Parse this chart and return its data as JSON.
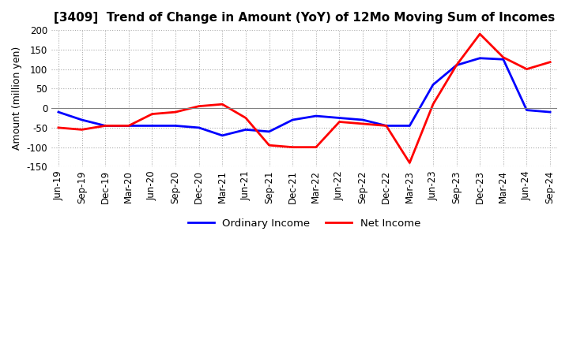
{
  "title": "[3409]  Trend of Change in Amount (YoY) of 12Mo Moving Sum of Incomes",
  "ylabel": "Amount (million yen)",
  "ylim": [
    -150,
    200
  ],
  "yticks": [
    -150,
    -100,
    -50,
    0,
    50,
    100,
    150,
    200
  ],
  "legend_labels": [
    "Ordinary Income",
    "Net Income"
  ],
  "line_colors": [
    "blue",
    "red"
  ],
  "dates": [
    "Jun-19",
    "Sep-19",
    "Dec-19",
    "Mar-20",
    "Jun-20",
    "Sep-20",
    "Dec-20",
    "Mar-21",
    "Jun-21",
    "Sep-21",
    "Dec-21",
    "Mar-22",
    "Jun-22",
    "Sep-22",
    "Dec-22",
    "Mar-23",
    "Jun-23",
    "Sep-23",
    "Dec-23",
    "Mar-24",
    "Jun-24",
    "Sep-24"
  ],
  "ordinary_income": [
    -10,
    -30,
    -45,
    -45,
    -45,
    -45,
    -50,
    -70,
    -55,
    -60,
    -30,
    -20,
    -25,
    -30,
    -45,
    -45,
    60,
    110,
    128,
    125,
    -5,
    -10
  ],
  "net_income": [
    -50,
    -55,
    -45,
    -45,
    -15,
    -10,
    5,
    10,
    -25,
    -95,
    -100,
    -100,
    -35,
    -40,
    -45,
    -140,
    10,
    110,
    190,
    130,
    100,
    118
  ],
  "background_color": "#ffffff",
  "grid_color": "#aaaaaa"
}
